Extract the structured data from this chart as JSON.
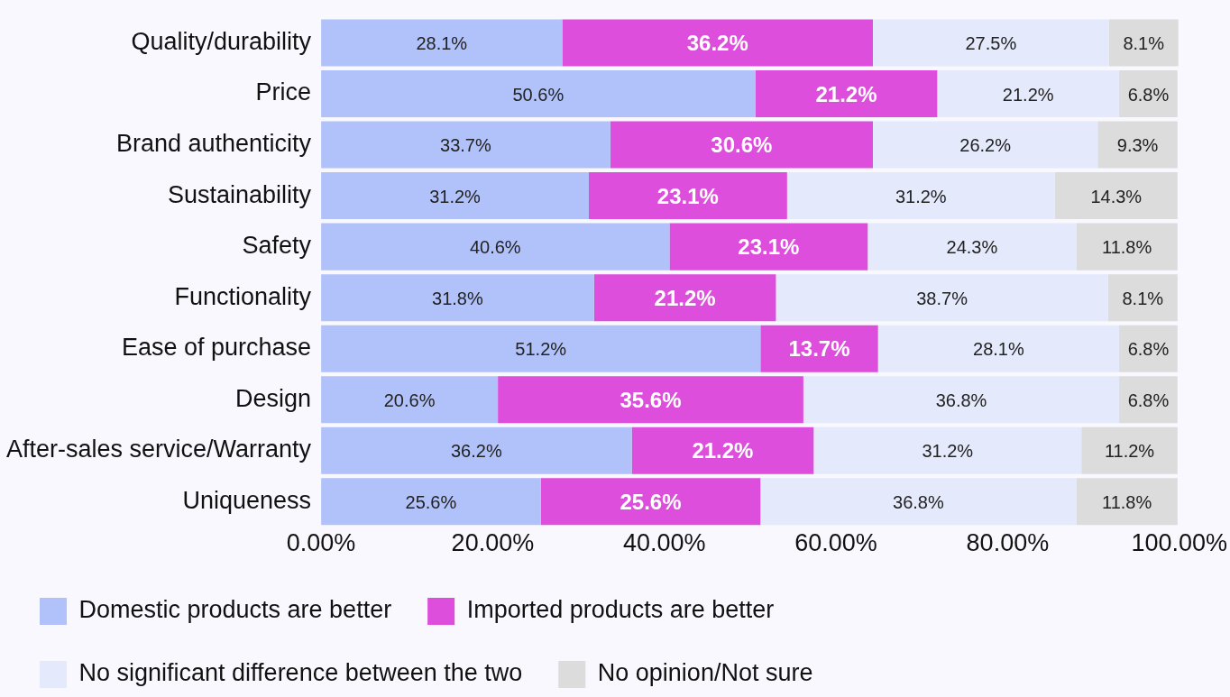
{
  "chart_data": {
    "type": "bar",
    "orientation": "horizontal",
    "stacked": true,
    "categories": [
      "Quality/durability",
      "Price",
      "Brand authenticity",
      "Sustainability",
      "Safety",
      "Functionality",
      "Ease of purchase",
      "Design",
      "After-sales service/Warranty",
      "Uniqueness"
    ],
    "series": [
      {
        "name": "Domestic products are better",
        "color": "#b1c2fa",
        "values": [
          28.1,
          50.6,
          33.7,
          31.2,
          40.6,
          31.8,
          51.2,
          20.6,
          36.2,
          25.6
        ],
        "value_labels": [
          "28.1%",
          "50.6%",
          "33.7%",
          "31.2%",
          "40.6%",
          "31.8%",
          "51.2%",
          "20.6%",
          "36.2%",
          "25.6%"
        ]
      },
      {
        "name": "Imported products are better",
        "color": "#dd4edc",
        "values": [
          36.2,
          21.2,
          30.6,
          23.1,
          23.1,
          21.2,
          13.7,
          35.6,
          21.2,
          25.6
        ],
        "value_labels": [
          "36.2%",
          "21.2%",
          "30.6%",
          "23.1%",
          "23.1%",
          "21.2%",
          "13.7%",
          "35.6%",
          "21.2%",
          "25.6%"
        ]
      },
      {
        "name": "No significant difference between the two",
        "color": "#e4e9fc",
        "values": [
          27.5,
          21.2,
          26.2,
          31.2,
          24.3,
          38.7,
          28.1,
          36.8,
          31.2,
          36.8
        ],
        "value_labels": [
          "27.5%",
          "21.2%",
          "26.2%",
          "31.2%",
          "24.3%",
          "38.7%",
          "28.1%",
          "36.8%",
          "31.2%",
          "36.8%"
        ]
      },
      {
        "name": "No opinion/Not sure",
        "color": "#dcdcdc",
        "values": [
          8.1,
          6.8,
          9.3,
          14.3,
          11.8,
          8.1,
          6.8,
          6.8,
          11.2,
          11.8
        ],
        "value_labels": [
          "8.1%",
          "6.8%",
          "9.3%",
          "14.3%",
          "11.8%",
          "8.1%",
          "6.8%",
          "6.8%",
          "11.2%",
          "11.8%"
        ]
      }
    ],
    "xlim": [
      0,
      100
    ],
    "xticks": [
      {
        "value": 0,
        "label": "0.00%"
      },
      {
        "value": 20,
        "label": "20.00%"
      },
      {
        "value": 40,
        "label": "40.00%"
      },
      {
        "value": 60,
        "label": "60.00%"
      },
      {
        "value": 80,
        "label": "80.00%"
      },
      {
        "value": 100,
        "label": "100.00%"
      }
    ],
    "grid": false,
    "legend": "bottom"
  }
}
